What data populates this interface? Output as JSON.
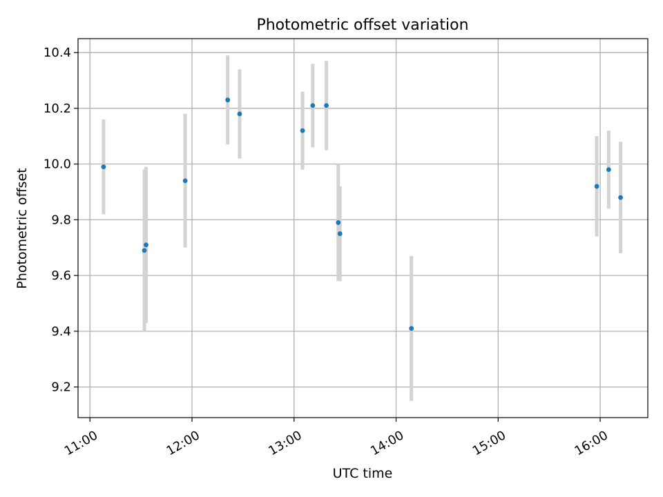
{
  "chart_data": {
    "type": "scatter",
    "title": "Photometric offset variation",
    "xlabel": "UTC time",
    "ylabel": "Photometric offset",
    "x_axis": "time",
    "xlim": [
      "10:53",
      "16:28"
    ],
    "ylim": [
      9.09,
      10.45
    ],
    "x_ticks": [
      "11:00",
      "12:00",
      "13:00",
      "14:00",
      "15:00",
      "16:00"
    ],
    "y_ticks": [
      9.2,
      9.4,
      9.6,
      9.8,
      10.0,
      10.2,
      10.4
    ],
    "y_tick_labels": [
      "9.2",
      "9.4",
      "9.6",
      "9.8",
      "10.0",
      "10.2",
      "10.4"
    ],
    "grid": true,
    "marker_color": "#1f77b4",
    "errorbar_color": "#d3d3d3",
    "points": [
      {
        "time": "11:08",
        "y": 9.99,
        "err": 0.17
      },
      {
        "time": "11:32",
        "y": 9.69,
        "err": 0.29
      },
      {
        "time": "11:33",
        "y": 9.71,
        "err": 0.28
      },
      {
        "time": "11:56",
        "y": 9.94,
        "err": 0.24
      },
      {
        "time": "12:21",
        "y": 10.23,
        "err": 0.16
      },
      {
        "time": "12:28",
        "y": 10.18,
        "err": 0.16
      },
      {
        "time": "13:05",
        "y": 10.12,
        "err": 0.14
      },
      {
        "time": "13:11",
        "y": 10.21,
        "err": 0.15
      },
      {
        "time": "13:19",
        "y": 10.21,
        "err": 0.16
      },
      {
        "time": "13:26",
        "y": 9.79,
        "err": 0.21
      },
      {
        "time": "13:27",
        "y": 9.75,
        "err": 0.17
      },
      {
        "time": "14:09",
        "y": 9.41,
        "err": 0.26
      },
      {
        "time": "15:58",
        "y": 9.92,
        "err": 0.18
      },
      {
        "time": "16:05",
        "y": 9.98,
        "err": 0.14
      },
      {
        "time": "16:12",
        "y": 9.88,
        "err": 0.2
      }
    ]
  }
}
